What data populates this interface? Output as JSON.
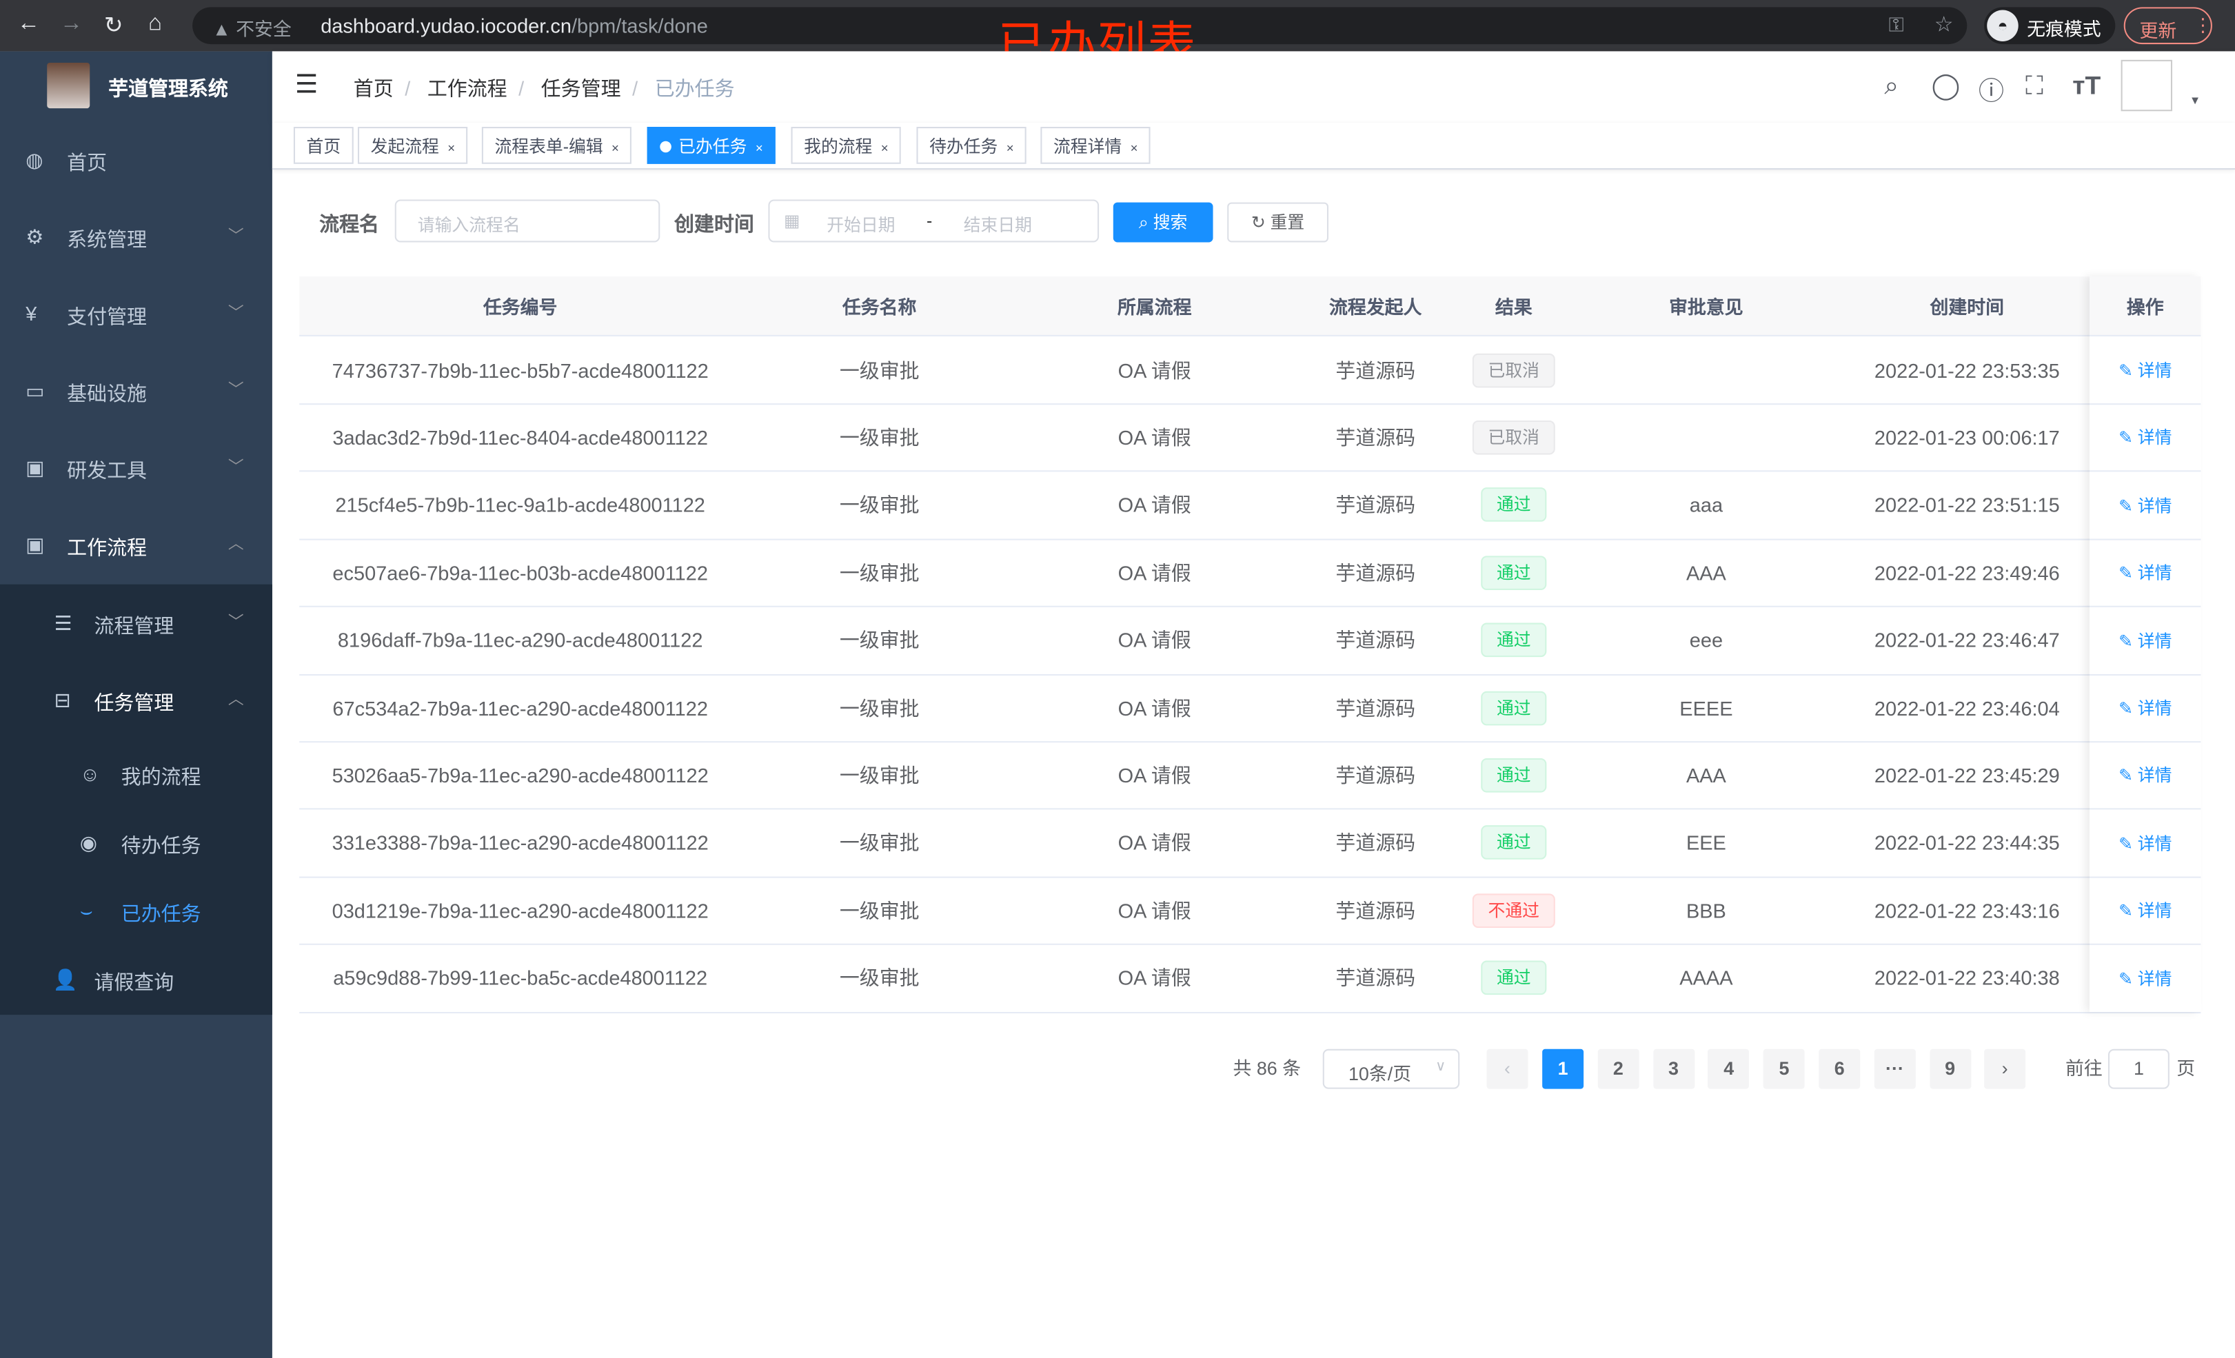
{
  "browser": {
    "security_label": "不安全",
    "url_host": "dashboard.yudao.iocoder.cn",
    "url_path": "/bpm/task/done",
    "incognito_label": "无痕模式",
    "update_label": "更新"
  },
  "annotation": "已办列表",
  "sidebar": {
    "title": "芋道管理系统",
    "items": [
      {
        "label": "首页"
      },
      {
        "label": "系统管理"
      },
      {
        "label": "支付管理"
      },
      {
        "label": "基础设施"
      },
      {
        "label": "研发工具"
      },
      {
        "label": "工作流程"
      },
      {
        "label": "流程管理"
      },
      {
        "label": "任务管理"
      },
      {
        "label": "我的流程"
      },
      {
        "label": "待办任务"
      },
      {
        "label": "已办任务"
      },
      {
        "label": "请假查询"
      }
    ],
    "active_color": "#409eff",
    "bg_color": "#304156"
  },
  "breadcrumb": [
    "首页",
    "工作流程",
    "任务管理",
    "已办任务"
  ],
  "tags": [
    {
      "label": "首页"
    },
    {
      "label": "发起流程"
    },
    {
      "label": "流程表单-编辑"
    },
    {
      "label": "已办任务",
      "active": true
    },
    {
      "label": "我的流程"
    },
    {
      "label": "待办任务"
    },
    {
      "label": "流程详情"
    }
  ],
  "search": {
    "name_label": "流程名",
    "name_placeholder": "请输入流程名",
    "time_label": "创建时间",
    "start_placeholder": "开始日期",
    "separator": "-",
    "end_placeholder": "结束日期",
    "search_button": "搜索",
    "reset_button": "重置"
  },
  "table": {
    "columns": [
      "任务编号",
      "任务名称",
      "所属流程",
      "流程发起人",
      "结果",
      "审批意见",
      "创建时间",
      "操作"
    ],
    "action_label": "详情",
    "rows": [
      {
        "id": "74736737-7b9b-11ec-b5b7-acde48001122",
        "name": "一级审批",
        "process": "OA 请假",
        "initiator": "芋道源码",
        "result": "已取消",
        "status": "cancel",
        "opinion": "",
        "time": "2022-01-22 23:53:35"
      },
      {
        "id": "3adac3d2-7b9d-11ec-8404-acde48001122",
        "name": "一级审批",
        "process": "OA 请假",
        "initiator": "芋道源码",
        "result": "已取消",
        "status": "cancel",
        "opinion": "",
        "time": "2022-01-23 00:06:17"
      },
      {
        "id": "215cf4e5-7b9b-11ec-9a1b-acde48001122",
        "name": "一级审批",
        "process": "OA 请假",
        "initiator": "芋道源码",
        "result": "通过",
        "status": "pass",
        "opinion": "aaa",
        "time": "2022-01-22 23:51:15"
      },
      {
        "id": "ec507ae6-7b9a-11ec-b03b-acde48001122",
        "name": "一级审批",
        "process": "OA 请假",
        "initiator": "芋道源码",
        "result": "通过",
        "status": "pass",
        "opinion": "AAA",
        "time": "2022-01-22 23:49:46"
      },
      {
        "id": "8196daff-7b9a-11ec-a290-acde48001122",
        "name": "一级审批",
        "process": "OA 请假",
        "initiator": "芋道源码",
        "result": "通过",
        "status": "pass",
        "opinion": "eee",
        "time": "2022-01-22 23:46:47"
      },
      {
        "id": "67c534a2-7b9a-11ec-a290-acde48001122",
        "name": "一级审批",
        "process": "OA 请假",
        "initiator": "芋道源码",
        "result": "通过",
        "status": "pass",
        "opinion": "EEEE",
        "time": "2022-01-22 23:46:04"
      },
      {
        "id": "53026aa5-7b9a-11ec-a290-acde48001122",
        "name": "一级审批",
        "process": "OA 请假",
        "initiator": "芋道源码",
        "result": "通过",
        "status": "pass",
        "opinion": "AAA",
        "time": "2022-01-22 23:45:29"
      },
      {
        "id": "331e3388-7b9a-11ec-a290-acde48001122",
        "name": "一级审批",
        "process": "OA 请假",
        "initiator": "芋道源码",
        "result": "通过",
        "status": "pass",
        "opinion": "EEE",
        "time": "2022-01-22 23:44:35"
      },
      {
        "id": "03d1219e-7b9a-11ec-a290-acde48001122",
        "name": "一级审批",
        "process": "OA 请假",
        "initiator": "芋道源码",
        "result": "不通过",
        "status": "reject",
        "opinion": "BBB",
        "time": "2022-01-22 23:43:16"
      },
      {
        "id": "a59c9d88-7b99-11ec-ba5c-acde48001122",
        "name": "一级审批",
        "process": "OA 请假",
        "initiator": "芋道源码",
        "result": "通过",
        "status": "pass",
        "opinion": "AAAA",
        "time": "2022-01-22 23:40:38"
      }
    ]
  },
  "pagination": {
    "total_text": "共 86 条",
    "page_size": "10条/页",
    "pages": [
      "1",
      "2",
      "3",
      "4",
      "5",
      "6",
      "···",
      "9"
    ],
    "current": "1",
    "goto_label": "前往",
    "goto_value": "1",
    "goto_suffix": "页"
  }
}
